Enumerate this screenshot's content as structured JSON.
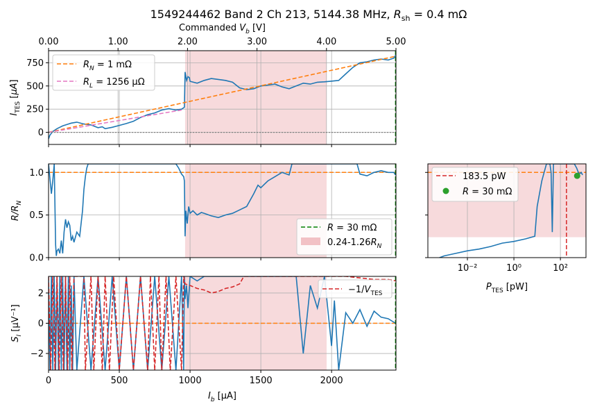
{
  "figure": {
    "title": "1549244462 Band 2 Ch 213, 5144.38 MHz, R_sh = 0.4 mΩ"
  },
  "chart_data": [
    {
      "id": "iv",
      "type": "line",
      "top_axis": {
        "label": "Commanded V_b [V]",
        "ticks": [
          0,
          1,
          2,
          3,
          4,
          5
        ],
        "tick_labels": [
          "0.00",
          "1.00",
          "2.00",
          "3.00",
          "4.00",
          "5.00"
        ],
        "range": [
          0,
          5
        ]
      },
      "xlim": [
        0,
        2455
      ],
      "ylim": [
        -130,
        880
      ],
      "yticks": [
        0,
        250,
        500,
        750
      ],
      "ytick_labels": [
        "0",
        "250",
        "500",
        "750"
      ],
      "ylabel": "I_TES [μA]",
      "shaded_region": {
        "x": [
          965,
          1965
        ],
        "color": "#f2c1c5"
      },
      "vline_x": 2452,
      "series": [
        {
          "name": "data",
          "color": "#1f77b4",
          "style": "solid",
          "x": [
            0,
            10,
            30,
            60,
            100,
            140,
            160,
            200,
            250,
            300,
            350,
            380,
            400,
            450,
            500,
            550,
            600,
            650,
            700,
            750,
            800,
            850,
            900,
            940,
            960,
            965,
            975,
            985,
            995,
            1000,
            1050,
            1100,
            1150,
            1200,
            1250,
            1300,
            1350,
            1400,
            1450,
            1500,
            1550,
            1600,
            1650,
            1700,
            1750,
            1800,
            1850,
            1900,
            1950,
            1990,
            2050,
            2100,
            2150,
            2200,
            2250,
            2300,
            2350,
            2400,
            2440,
            2452
          ],
          "y": [
            -70,
            -30,
            10,
            40,
            70,
            90,
            100,
            110,
            90,
            80,
            50,
            60,
            40,
            55,
            75,
            95,
            120,
            160,
            190,
            210,
            240,
            255,
            240,
            250,
            270,
            650,
            560,
            600,
            590,
            550,
            530,
            560,
            580,
            570,
            560,
            540,
            480,
            460,
            470,
            500,
            510,
            520,
            490,
            470,
            500,
            530,
            520,
            540,
            545,
            550,
            560,
            630,
            700,
            750,
            760,
            780,
            790,
            780,
            800,
            830
          ]
        },
        {
          "name": "R_N  = 1 mΩ",
          "color": "#ff7f0e",
          "style": "dashed",
          "x": [
            0,
            2452
          ],
          "y": [
            0,
            820
          ]
        },
        {
          "name": "R_L = 1256 μΩ",
          "color": "#e377c2",
          "style": "dashed",
          "x": [
            0,
            940
          ],
          "y": [
            0,
            240
          ]
        },
        {
          "name": "zero",
          "color": "#7f7f7f",
          "style": "dotted",
          "x": [
            0,
            2455
          ],
          "y": [
            0,
            0
          ]
        }
      ],
      "legend": {
        "position": "upper-left",
        "entries": [
          {
            "label_main": "R",
            "label_sub": "N",
            "label_rest": "  = 1 mΩ",
            "color": "#ff7f0e"
          },
          {
            "label_main": "R",
            "label_sub": "L",
            "label_rest": " = 1256 μΩ",
            "color": "#e377c2"
          }
        ]
      }
    },
    {
      "id": "rn",
      "type": "line",
      "xlim": [
        0,
        2455
      ],
      "ylim": [
        0,
        1.1
      ],
      "yticks": [
        0,
        0.5,
        1.0
      ],
      "ytick_labels": [
        "0.0",
        "0.5",
        "1.0"
      ],
      "ylabel": "R/R_N",
      "shaded_region": {
        "x": [
          965,
          1965
        ],
        "color": "#f2c1c5"
      },
      "hline_y": 1.0,
      "vline_x": 2452,
      "series": [
        {
          "name": "data",
          "color": "#1f77b4",
          "style": "solid",
          "x": [
            0,
            20,
            30,
            40,
            50,
            55,
            60,
            70,
            80,
            90,
            100,
            110,
            120,
            130,
            140,
            150,
            160,
            170,
            180,
            200,
            220,
            240,
            250,
            260,
            270,
            280,
            300,
            320,
            340,
            360,
            380,
            400,
            420,
            440,
            460,
            480,
            500,
            520,
            540,
            560,
            580,
            600,
            620,
            640,
            660,
            680,
            700,
            720,
            740,
            760,
            780,
            800,
            820,
            840,
            860,
            880,
            900,
            920,
            940,
            955,
            960,
            965,
            970,
            980,
            990,
            1000,
            1020,
            1050,
            1080,
            1100,
            1150,
            1200,
            1250,
            1300,
            1350,
            1400,
            1450,
            1480,
            1500,
            1550,
            1600,
            1650,
            1700,
            1720,
            1750,
            1800,
            1850,
            1900,
            1950,
            2000,
            2050,
            2100,
            2150,
            2180,
            2200,
            2250,
            2300,
            2350,
            2400,
            2440,
            2452
          ],
          "y": [
            1.1,
            0.75,
            0.9,
            1.1,
            0.15,
            0.02,
            0.08,
            0.1,
            0.05,
            0.2,
            0.05,
            0.3,
            0.45,
            0.35,
            0.42,
            0.38,
            0.2,
            0.25,
            0.18,
            0.3,
            0.25,
            0.55,
            0.8,
            0.95,
            1.05,
            1.1,
            1.1,
            1.1,
            1.1,
            1.1,
            1.1,
            1.1,
            1.1,
            1.1,
            1.1,
            1.1,
            1.1,
            1.1,
            1.1,
            1.1,
            1.1,
            1.1,
            1.1,
            1.1,
            1.1,
            1.1,
            1.1,
            1.1,
            1.1,
            1.1,
            1.1,
            1.1,
            1.1,
            1.1,
            1.1,
            1.1,
            1.1,
            1.05,
            0.98,
            0.95,
            0.9,
            0.25,
            0.55,
            0.4,
            0.6,
            0.52,
            0.55,
            0.5,
            0.53,
            0.52,
            0.49,
            0.47,
            0.5,
            0.52,
            0.56,
            0.6,
            0.75,
            0.85,
            0.82,
            0.9,
            0.95,
            1.0,
            0.97,
            1.1,
            1.1,
            1.1,
            1.1,
            1.1,
            1.1,
            1.1,
            1.1,
            1.1,
            1.1,
            1.1,
            0.98,
            0.96,
            1.0,
            1.02,
            1.0,
            1.0,
            0.97
          ]
        }
      ],
      "legend": {
        "position": "lower-right",
        "entries": [
          {
            "label": "R = 30 mΩ",
            "color": "#008000",
            "kind": "dashed"
          },
          {
            "label": "0.24-1.26R_N",
            "color": "#f2c1c5",
            "kind": "patch"
          }
        ]
      }
    },
    {
      "id": "si",
      "type": "line",
      "xlim": [
        0,
        2455
      ],
      "ylim": [
        -3.1,
        3.1
      ],
      "yticks": [
        -2,
        0,
        2
      ],
      "ytick_labels": [
        "−2",
        "0",
        "2"
      ],
      "ylabel": "S_I [μV⁻¹]",
      "xticks": [
        0,
        500,
        1000,
        1500,
        2000
      ],
      "xtick_labels": [
        "0",
        "500",
        "1000",
        "1500",
        "2000"
      ],
      "xlabel": "I_b [μA]",
      "shaded_region": {
        "x": [
          965,
          1965
        ],
        "color": "#f2c1c5"
      },
      "hline_y": 0,
      "vline_x": 2452,
      "series": [
        {
          "name": "data",
          "color": "#1f77b4",
          "style": "solid",
          "x": [
            0,
            10,
            20,
            30,
            40,
            50,
            60,
            70,
            80,
            90,
            100,
            110,
            120,
            130,
            140,
            150,
            160,
            170,
            180,
            200,
            250,
            300,
            350,
            400,
            450,
            500,
            550,
            600,
            650,
            700,
            750,
            800,
            850,
            900,
            940,
            955,
            960,
            965,
            975,
            985,
            1000,
            1050,
            1100,
            1150,
            1200,
            1250,
            1300,
            1350,
            1400,
            1450,
            1500,
            1550,
            1600,
            1650,
            1700,
            1720,
            1750,
            1800,
            1850,
            1900,
            1950,
            2000,
            2020,
            2050,
            2100,
            2150,
            2200,
            2250,
            2300,
            2350,
            2400,
            2452
          ],
          "y": [
            3.1,
            -3.1,
            3.1,
            -3.1,
            3.1,
            -3.1,
            3.1,
            -3.1,
            3.1,
            -3.1,
            3.1,
            -3.1,
            3.1,
            -3.1,
            3.1,
            -3.1,
            2.5,
            -3.1,
            3.1,
            -3.1,
            3.1,
            -3.1,
            3.1,
            -3.1,
            3.1,
            -3.1,
            3.1,
            -3.1,
            3.1,
            -3.1,
            3.1,
            -3.1,
            3.1,
            -3.1,
            3.1,
            -3.1,
            3.1,
            1.6,
            2.5,
            1.0,
            3.1,
            2.8,
            3.1,
            3.1,
            3.1,
            3.1,
            3.1,
            3.1,
            3.1,
            3.1,
            3.1,
            3.1,
            3.1,
            3.1,
            3.1,
            3.1,
            3.1,
            -2.0,
            2.5,
            1.0,
            3.1,
            -1.5,
            1.5,
            -3.1,
            0.7,
            0.0,
            0.9,
            -0.2,
            0.8,
            0.4,
            0.3,
            0.0
          ]
        },
        {
          "name": "−1/V_TES",
          "color": "#d62728",
          "style": "dashed",
          "x": [
            0,
            15,
            30,
            45,
            60,
            75,
            90,
            105,
            120,
            135,
            150,
            165,
            180,
            250,
            260,
            300,
            320,
            350,
            380,
            400,
            430,
            460,
            500,
            550,
            600,
            650,
            700,
            720,
            750,
            780,
            800,
            830,
            860,
            900,
            940,
            955,
            965,
            1000,
            1050,
            1100,
            1150,
            1200,
            1250,
            1300,
            1350,
            1380,
            1400,
            1500,
            1600,
            1700,
            1800,
            1900,
            1950,
            2000,
            2100,
            2200,
            2300,
            2400,
            2452
          ],
          "y": [
            3.1,
            -3.1,
            3.1,
            -3.1,
            3.1,
            -3.1,
            3.1,
            -3.1,
            3.1,
            -3.1,
            3.1,
            -3.1,
            3.1,
            3.1,
            -3.1,
            3.1,
            -3.1,
            3.1,
            -3.1,
            3.1,
            -3.1,
            3.1,
            -3.1,
            3.1,
            -3.1,
            3.1,
            -3.1,
            3.1,
            -3.1,
            3.1,
            -3.1,
            3.1,
            -3.1,
            3.1,
            -3.1,
            3.1,
            2.6,
            2.5,
            2.3,
            2.2,
            2.0,
            2.1,
            2.3,
            2.4,
            2.6,
            3.1,
            3.1,
            3.1,
            3.1,
            3.1,
            3.1,
            3.1,
            3.1,
            3.1,
            3.1,
            3.0,
            2.9,
            2.9,
            2.8
          ]
        }
      ],
      "legend": {
        "position": "upper-right",
        "entries": [
          {
            "label": "−1/V_TES",
            "color": "#d62728",
            "kind": "dashed"
          }
        ]
      }
    },
    {
      "id": "ptes",
      "type": "line",
      "xscale": "log",
      "xlim_log10": [
        -3.7,
        3.1
      ],
      "ylim": [
        0,
        1.1
      ],
      "xticks_log10": [
        -2,
        0,
        2
      ],
      "xtick_labels": [
        "10⁻²",
        "10⁰",
        "10²"
      ],
      "xlabel": "P_TES [pW]",
      "shaded_region": {
        "y": [
          0.24,
          1.1
        ],
        "color": "#f2c1c5"
      },
      "hline_y": 1.0,
      "vline_x_log10": 2.26,
      "point": {
        "x_log10": 2.72,
        "y": 0.96,
        "color": "#2ca02c"
      },
      "series": [
        {
          "name": "data",
          "color": "#1f77b4",
          "style": "solid",
          "x_log10": [
            -3.2,
            -3.0,
            -2.5,
            -2.0,
            -1.5,
            -1.0,
            -0.5,
            0.0,
            0.5,
            0.9,
            1.0,
            1.2,
            1.4,
            1.55,
            1.6,
            1.65,
            1.7,
            2.0,
            2.1,
            2.3,
            2.4,
            2.5,
            2.6,
            2.7,
            2.8,
            2.9,
            2.95
          ],
          "y": [
            0.0,
            0.02,
            0.05,
            0.08,
            0.1,
            0.13,
            0.17,
            0.19,
            0.22,
            0.25,
            0.6,
            0.9,
            1.1,
            1.1,
            1.0,
            0.3,
            1.1,
            1.1,
            1.1,
            1.1,
            1.1,
            1.1,
            1.1,
            1.05,
            0.98,
            1.0,
            0.97
          ]
        }
      ],
      "legend": {
        "position": "upper-left",
        "entries": [
          {
            "label": "183.5 pW",
            "color": "#d62728",
            "kind": "dashed"
          },
          {
            "label": "R = 30 mΩ",
            "color": "#2ca02c",
            "kind": "dot"
          }
        ]
      }
    }
  ]
}
